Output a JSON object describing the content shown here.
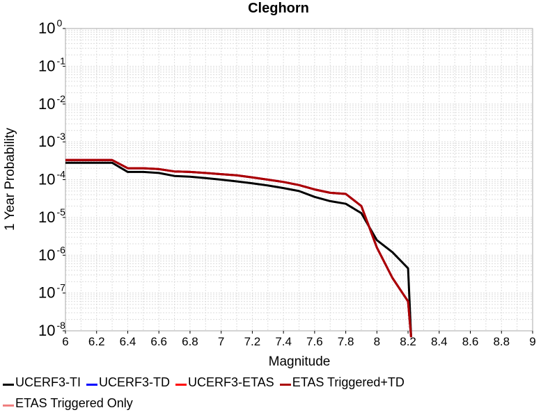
{
  "chart_data": {
    "type": "line",
    "title": "Cleghorn",
    "xlabel": "Magnitude",
    "ylabel": "1 Year Probability",
    "xlim": [
      6,
      9
    ],
    "ylim": [
      1e-08,
      1
    ],
    "yscale": "log",
    "grid": true,
    "legend_position": "bottom",
    "x_ticks": [
      "6",
      "6.2",
      "6.4",
      "6.6",
      "6.8",
      "7",
      "7.2",
      "7.4",
      "7.6",
      "7.8",
      "8",
      "8.2",
      "8.4",
      "8.6",
      "8.8",
      "9"
    ],
    "y_ticks": [
      {
        "base": "10",
        "exp": "-8"
      },
      {
        "base": "10",
        "exp": "-7"
      },
      {
        "base": "10",
        "exp": "-6"
      },
      {
        "base": "10",
        "exp": "-5"
      },
      {
        "base": "10",
        "exp": "-4"
      },
      {
        "base": "10",
        "exp": "-3"
      },
      {
        "base": "10",
        "exp": "-2"
      },
      {
        "base": "10",
        "exp": "-1"
      },
      {
        "base": "10",
        "exp": "0"
      }
    ],
    "series": [
      {
        "name": "UCERF3-TI",
        "color": "#000000",
        "x": [
          6.0,
          6.1,
          6.2,
          6.3,
          6.4,
          6.5,
          6.6,
          6.7,
          6.8,
          6.9,
          7.0,
          7.1,
          7.2,
          7.3,
          7.4,
          7.5,
          7.6,
          7.7,
          7.8,
          7.9,
          8.0,
          8.1,
          8.2,
          8.22
        ],
        "y": [
          0.00028,
          0.00028,
          0.00028,
          0.00028,
          0.00016,
          0.00016,
          0.00015,
          0.000125,
          0.00012,
          0.00011,
          0.0001,
          9e-05,
          8e-05,
          7e-05,
          6e-05,
          5e-05,
          3.5e-05,
          2.7e-05,
          2.3e-05,
          1.3e-05,
          2.5e-06,
          1.2e-06,
          4.5e-07,
          6.8e-09
        ]
      },
      {
        "name": "UCERF3-TD",
        "color": "#0000ff",
        "x": [
          6.0,
          6.1,
          6.2,
          6.3,
          6.4,
          6.5,
          6.6,
          6.7,
          6.8,
          6.9,
          7.0,
          7.1,
          7.2,
          7.3,
          7.4,
          7.5,
          7.6,
          7.7,
          7.8,
          7.9,
          8.0,
          8.1,
          8.2,
          8.22
        ],
        "y": [
          0.00033,
          0.00033,
          0.00033,
          0.00033,
          0.0002,
          0.0002,
          0.00019,
          0.000165,
          0.00016,
          0.00015,
          0.00014,
          0.00013,
          0.000115,
          0.0001,
          8.7e-05,
          7.2e-05,
          5.5e-05,
          4.5e-05,
          4.2e-05,
          2e-05,
          1.6e-06,
          2.5e-07,
          6e-08,
          6.8e-09
        ]
      },
      {
        "name": "UCERF3-ETAS",
        "color": "#ff0000",
        "x": [
          6.0,
          6.1,
          6.2,
          6.3,
          6.4,
          6.5,
          6.6,
          6.7,
          6.8,
          6.9,
          7.0,
          7.1,
          7.2,
          7.3,
          7.4,
          7.5,
          7.6,
          7.7,
          7.8,
          7.9,
          8.0,
          8.1,
          8.2,
          8.22
        ],
        "y": [
          0.00033,
          0.00033,
          0.00033,
          0.00033,
          0.0002,
          0.0002,
          0.00019,
          0.000165,
          0.00016,
          0.00015,
          0.00014,
          0.00013,
          0.000115,
          0.0001,
          8.7e-05,
          7.2e-05,
          5.5e-05,
          4.5e-05,
          4.2e-05,
          2e-05,
          1.6e-06,
          2.5e-07,
          6e-08,
          6.8e-09
        ]
      },
      {
        "name": "ETAS Triggered+TD",
        "color": "#aa0000",
        "x": [
          6.0,
          6.1,
          6.2,
          6.3,
          6.4,
          6.5,
          6.6,
          6.7,
          6.8,
          6.9,
          7.0,
          7.1,
          7.2,
          7.3,
          7.4,
          7.5,
          7.6,
          7.7,
          7.8,
          7.9,
          8.0,
          8.1,
          8.2,
          8.22
        ],
        "y": [
          0.00033,
          0.00033,
          0.00033,
          0.00033,
          0.0002,
          0.0002,
          0.00019,
          0.000165,
          0.00016,
          0.00015,
          0.00014,
          0.00013,
          0.000115,
          0.0001,
          8.7e-05,
          7.2e-05,
          5.5e-05,
          4.5e-05,
          4.2e-05,
          2e-05,
          1.6e-06,
          2.5e-07,
          6e-08,
          6.8e-09
        ]
      },
      {
        "name": "ETAS Triggered Only",
        "color": "#f08080",
        "x": [],
        "y": []
      }
    ]
  }
}
